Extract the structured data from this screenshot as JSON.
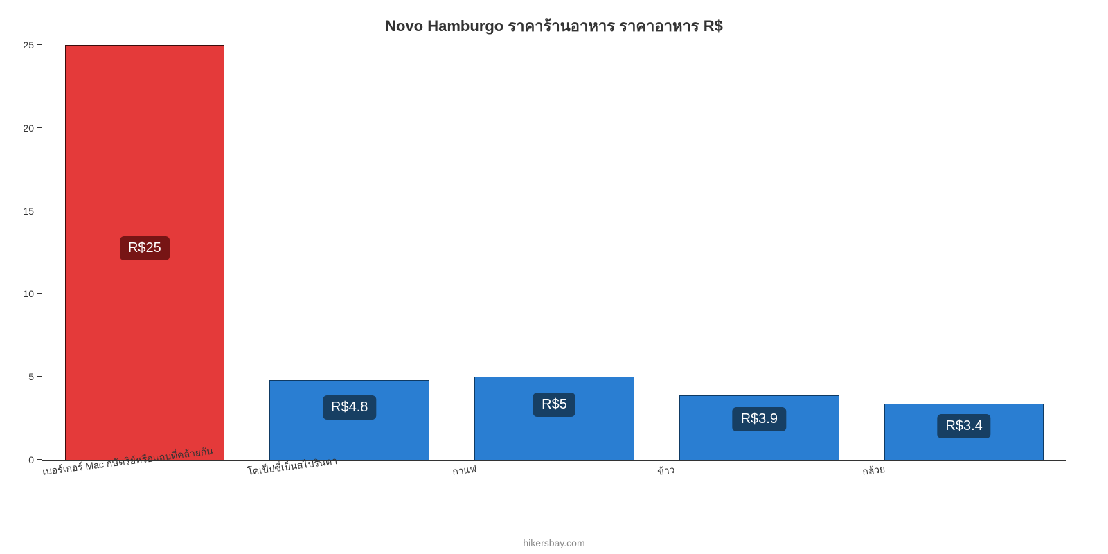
{
  "chart": {
    "type": "bar",
    "title": "Novo Hamburgo ราคาร้านอาหาร ราคาอาหาร R$",
    "title_fontsize": 22,
    "title_color": "#333333",
    "background_color": "#ffffff",
    "axis_color": "#333333",
    "ylim": [
      0,
      25
    ],
    "ytick_step": 5,
    "yticks": [
      0,
      5,
      10,
      15,
      20,
      25
    ],
    "x_label_rotation_deg": -7,
    "x_label_fontsize": 14,
    "y_label_fontsize": 14,
    "bar_width_ratio": 0.78,
    "value_label_fontsize": 20,
    "value_label_text_color": "#ffffff",
    "value_label_border_radius": 6,
    "categories": [
      "เบอร์เกอร์ Mac กษัตริย์หรือแถบที่คล้ายกัน",
      "โคเป็ปซี่เป็นสไปรินดา",
      "กาแฟ",
      "ข้าว",
      "กล้วย"
    ],
    "values": [
      25,
      4.8,
      5,
      3.9,
      3.4
    ],
    "value_labels": [
      "R$25",
      "R$4.8",
      "R$5",
      "R$3.9",
      "R$3.4"
    ],
    "bar_fill_colors": [
      "#e43a3a",
      "#2a7ed2",
      "#2a7ed2",
      "#2a7ed2",
      "#2a7ed2"
    ],
    "bar_border_colors": [
      "#3b0d0d",
      "#0f3a63",
      "#0f3a63",
      "#0f3a63",
      "#0f3a63"
    ],
    "value_label_bg_colors": [
      "#771515",
      "#173f63",
      "#173f63",
      "#173f63",
      "#173f63"
    ],
    "value_label_top_pct": [
      46,
      18,
      18,
      18,
      18
    ]
  },
  "attribution": "hikersbay.com",
  "attribution_color": "#888888",
  "attribution_fontsize": 14
}
